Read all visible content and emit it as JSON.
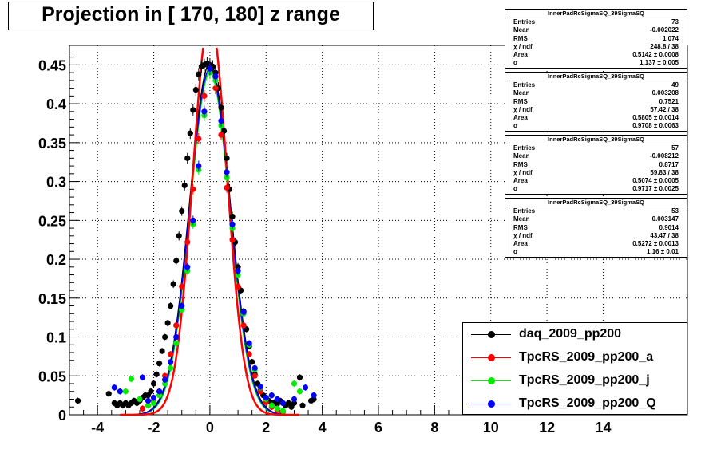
{
  "title": "Projection in [ 170, 180] z range",
  "stats_boxes": [
    {
      "name": "InnerPadRcSigmaSQ_39SigmaSQ",
      "rows": [
        {
          "label": "Entries",
          "value": "73"
        },
        {
          "label": "Mean",
          "value": "-0.002022"
        },
        {
          "label": "RMS",
          "value": "1.074"
        },
        {
          "label": "χ  / ndf",
          "value": "248.8 / 38"
        },
        {
          "label": "Area",
          "value": "0.5142 ± 0.0008"
        },
        {
          "label": "σ",
          "value": "1.137 ± 0.005"
        }
      ]
    },
    {
      "name": "InnerPadRcSigmaSQ_39SigmaSQ",
      "rows": [
        {
          "label": "Entries",
          "value": "49"
        },
        {
          "label": "Mean",
          "value": "0.003208"
        },
        {
          "label": "RMS",
          "value": "0.7521"
        },
        {
          "label": "χ  / ndf",
          "value": "57.42 / 38"
        },
        {
          "label": "Area",
          "value": "0.5805 ± 0.0014"
        },
        {
          "label": "σ",
          "value": "0.9708 ± 0.0063"
        }
      ]
    },
    {
      "name": "InnerPadRcSigmaSQ_39SigmaSQ",
      "rows": [
        {
          "label": "Entries",
          "value": "57"
        },
        {
          "label": "Mean",
          "value": "-0.008212"
        },
        {
          "label": "RMS",
          "value": "0.8717"
        },
        {
          "label": "χ  / ndf",
          "value": "59.83 / 38"
        },
        {
          "label": "Area",
          "value": "0.5074 ± 0.0005"
        },
        {
          "label": "σ",
          "value": "0.9717 ± 0.0025"
        }
      ]
    },
    {
      "name": "InnerPadRcSigmaSQ_39SigmaSQ",
      "rows": [
        {
          "label": "Entries",
          "value": "53"
        },
        {
          "label": "Mean",
          "value": "0.003147"
        },
        {
          "label": "RMS",
          "value": "0.9014"
        },
        {
          "label": "χ  / ndf",
          "value": "43.47 / 38"
        },
        {
          "label": "Area",
          "value": "0.5272 ± 0.0013"
        },
        {
          "label": "σ",
          "value": "1.16 ± 0.01"
        }
      ]
    }
  ],
  "chart_data": {
    "type": "scatter",
    "title": "Projection in [ 170, 180] z range",
    "xlabel": "",
    "ylabel": "",
    "xlim": [
      -5,
      17
    ],
    "ylim": [
      0,
      0.475
    ],
    "grid": true,
    "legend_position": "bottom-right",
    "x_ticks": [
      -4,
      -2,
      0,
      2,
      4,
      6,
      8,
      10,
      12,
      14
    ],
    "y_ticks": [
      0,
      0.05,
      0.1,
      0.15,
      0.2,
      0.25,
      0.3,
      0.35,
      0.4,
      0.45
    ],
    "x_tick_labels": [
      "-4",
      "-2",
      "0",
      "2",
      "4",
      "6",
      "8",
      "10",
      "12",
      "14"
    ],
    "y_tick_labels": [
      "0",
      "0.05",
      "0.1",
      "0.15",
      "0.2",
      "0.25",
      "0.3",
      "0.35",
      "0.4",
      "0.45"
    ],
    "series": [
      {
        "name": "daq_2009_pp200",
        "color": "#000000",
        "x": [
          -4.7,
          -3.6,
          -3.4,
          -3.3,
          -3.2,
          -3.1,
          -3.0,
          -2.9,
          -2.8,
          -2.7,
          -2.6,
          -2.5,
          -2.4,
          -2.3,
          -2.2,
          -2.1,
          -2.0,
          -1.9,
          -1.8,
          -1.7,
          -1.6,
          -1.5,
          -1.4,
          -1.3,
          -1.2,
          -1.1,
          -1.0,
          -0.9,
          -0.8,
          -0.7,
          -0.6,
          -0.5,
          -0.4,
          -0.3,
          -0.2,
          -0.1,
          0.0,
          0.1,
          0.2,
          0.3,
          0.4,
          0.5,
          0.6,
          0.7,
          0.8,
          0.9,
          1.0,
          1.1,
          1.2,
          1.3,
          1.4,
          1.5,
          1.6,
          1.7,
          1.8,
          1.9,
          2.0,
          2.1,
          2.2,
          2.3,
          2.4,
          2.5,
          2.6,
          2.7,
          2.8,
          2.9,
          3.0,
          3.2,
          3.3,
          3.6,
          3.7
        ],
        "y": [
          0.018,
          0.027,
          0.015,
          0.012,
          0.015,
          0.012,
          0.015,
          0.012,
          0.015,
          0.018,
          0.015,
          0.018,
          0.022,
          0.025,
          0.025,
          0.03,
          0.04,
          0.052,
          0.066,
          0.082,
          0.1,
          0.118,
          0.14,
          0.168,
          0.198,
          0.23,
          0.262,
          0.295,
          0.33,
          0.362,
          0.392,
          0.418,
          0.438,
          0.448,
          0.45,
          0.452,
          0.45,
          0.448,
          0.44,
          0.42,
          0.395,
          0.365,
          0.33,
          0.29,
          0.255,
          0.222,
          0.19,
          0.16,
          0.133,
          0.11,
          0.088,
          0.068,
          0.052,
          0.04,
          0.032,
          0.025,
          0.022,
          0.018,
          0.015,
          0.016,
          0.014,
          0.018,
          0.015,
          0.012,
          0.015,
          0.01,
          0.015,
          0.048,
          0.012,
          0.018,
          0.02
        ]
      },
      {
        "name": "TpcRS_2009_pp200_a",
        "color": "#ff0000",
        "x": [
          -2.4,
          -2.2,
          -2.0,
          -1.8,
          -1.6,
          -1.4,
          -1.2,
          -1.0,
          -0.8,
          -0.6,
          -0.4,
          -0.2,
          0.0,
          0.2,
          0.4,
          0.6,
          0.8,
          1.0,
          1.2,
          1.4,
          1.6,
          1.8,
          2.0,
          2.2,
          2.4,
          2.6
        ],
        "y": [
          0.008,
          0.012,
          0.018,
          0.03,
          0.05,
          0.078,
          0.115,
          0.165,
          0.222,
          0.29,
          0.355,
          0.41,
          0.445,
          0.42,
          0.36,
          0.292,
          0.225,
          0.165,
          0.115,
          0.078,
          0.05,
          0.03,
          0.016,
          0.01,
          0.006,
          0.004
        ]
      },
      {
        "name": "TpcRS_2009_pp200_j",
        "color": "#00ee00",
        "x": [
          -3.0,
          -2.8,
          -2.5,
          -2.2,
          -2.0,
          -1.8,
          -1.6,
          -1.4,
          -1.2,
          -1.0,
          -0.8,
          -0.6,
          -0.4,
          -0.2,
          0.0,
          0.2,
          0.4,
          0.6,
          0.8,
          1.0,
          1.2,
          1.4,
          1.6,
          1.8,
          2.0,
          2.2,
          2.4,
          2.6,
          3.0,
          3.2
        ],
        "y": [
          0.03,
          0.046,
          0.02,
          0.012,
          0.015,
          0.025,
          0.04,
          0.06,
          0.092,
          0.135,
          0.185,
          0.245,
          0.315,
          0.385,
          0.44,
          0.43,
          0.372,
          0.305,
          0.24,
          0.18,
          0.13,
          0.09,
          0.058,
          0.035,
          0.02,
          0.012,
          0.008,
          0.005,
          0.04,
          0.03
        ]
      },
      {
        "name": "TpcRS_2009_pp200_Q",
        "color": "#0000ff",
        "x": [
          -3.4,
          -3.2,
          -2.4,
          -2.2,
          -2.0,
          -1.8,
          -1.6,
          -1.4,
          -1.2,
          -1.0,
          -0.8,
          -0.6,
          -0.4,
          -0.2,
          0.0,
          0.2,
          0.4,
          0.6,
          0.8,
          1.0,
          1.2,
          1.4,
          1.6,
          1.8,
          2.0,
          2.2,
          2.4,
          2.6,
          3.0,
          3.4,
          3.7
        ],
        "y": [
          0.035,
          0.03,
          0.048,
          0.018,
          0.022,
          0.03,
          0.045,
          0.068,
          0.1,
          0.14,
          0.19,
          0.25,
          0.32,
          0.39,
          0.445,
          0.435,
          0.378,
          0.312,
          0.245,
          0.185,
          0.132,
          0.092,
          0.06,
          0.036,
          0.022,
          0.025,
          0.02,
          0.015,
          0.02,
          0.035,
          0.025
        ]
      }
    ],
    "fit_curve": {
      "series": "TpcRS_2009_pp200_a",
      "color": "#ff0000",
      "amplitude": 0.51,
      "sigma": 0.61
    }
  }
}
